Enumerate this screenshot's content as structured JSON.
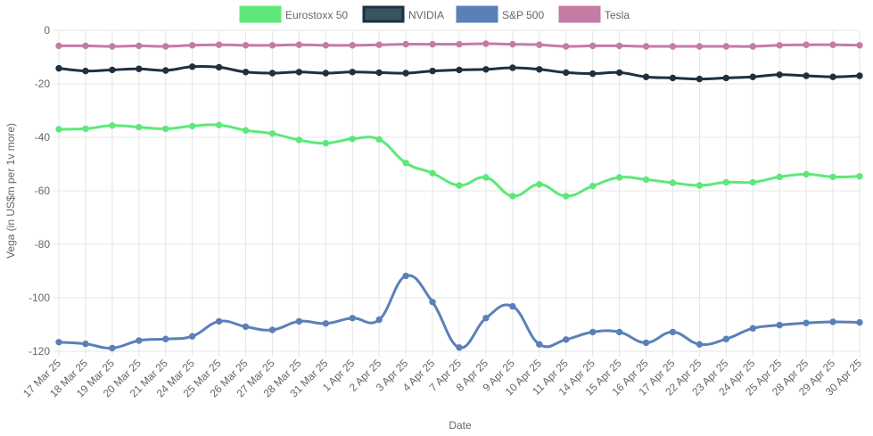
{
  "chart_data": {
    "type": "line",
    "title": "",
    "xlabel": "Date",
    "ylabel": "Vega (in US$m per 1v more)",
    "ylim": [
      -120,
      0
    ],
    "yticks": [
      0,
      -20,
      -40,
      -60,
      -80,
      -100,
      -120
    ],
    "grid": true,
    "legend_position": "top",
    "categories": [
      "17 Mar 25",
      "18 Mar 25",
      "19 Mar 25",
      "20 Mar 25",
      "21 Mar 25",
      "24 Mar 25",
      "25 Mar 25",
      "26 Mar 25",
      "27 Mar 25",
      "28 Mar 25",
      "31 Mar 25",
      "1 Apr 25",
      "2 Apr 25",
      "3 Apr 25",
      "4 Apr 25",
      "7 Apr 25",
      "8 Apr 25",
      "9 Apr 25",
      "10 Apr 25",
      "11 Apr 25",
      "14 Apr 25",
      "15 Apr 25",
      "16 Apr 25",
      "17 Apr 25",
      "22 Apr 25",
      "23 Apr 25",
      "24 Apr 25",
      "25 Apr 25",
      "28 Apr 25",
      "29 Apr 25",
      "30 Apr 25"
    ],
    "series": [
      {
        "name": "Eurostoxx 50",
        "color": "#5ee87a",
        "border_color": "#5ee87a",
        "values": [
          -37.0,
          -36.8,
          -35.6,
          -36.2,
          -36.8,
          -35.8,
          -35.4,
          -37.4,
          -38.6,
          -41.0,
          -42.2,
          -40.6,
          -40.8,
          -49.6,
          -53.4,
          -58.0,
          -55.0,
          -62.0,
          -57.6,
          -62.0,
          -58.2,
          -55.0,
          -55.8,
          -57.0,
          -58.0,
          -56.8,
          -56.8,
          -54.8,
          -53.8,
          -54.8,
          -54.6
        ]
      },
      {
        "name": "NVIDIA",
        "color": "#3a5360",
        "border_color": "#1f3040",
        "values": [
          -14.2,
          -15.2,
          -14.8,
          -14.4,
          -15.0,
          -13.6,
          -13.8,
          -15.6,
          -16.0,
          -15.6,
          -16.0,
          -15.6,
          -15.8,
          -16.0,
          -15.2,
          -14.8,
          -14.6,
          -14.0,
          -14.6,
          -15.8,
          -16.2,
          -15.8,
          -17.4,
          -17.8,
          -18.2,
          -17.8,
          -17.4,
          -16.6,
          -17.0,
          -17.4,
          -17.0
        ]
      },
      {
        "name": "S&P 500",
        "color": "#5b80b8",
        "border_color": "#5b80b8",
        "values": [
          -116.6,
          -117.2,
          -118.8,
          -116.0,
          -115.4,
          -114.4,
          -108.8,
          -110.8,
          -112.0,
          -108.8,
          -109.6,
          -107.6,
          -108.2,
          -91.8,
          -101.6,
          -118.6,
          -107.6,
          -103.2,
          -117.4,
          -115.6,
          -112.8,
          -112.8,
          -116.8,
          -112.8,
          -117.4,
          -115.4,
          -111.4,
          -110.2,
          -109.4,
          -109.0,
          -109.2
        ]
      },
      {
        "name": "Tesla",
        "color": "#c47ba4",
        "border_color": "#c47ba4",
        "values": [
          -5.8,
          -5.8,
          -6.0,
          -5.8,
          -6.0,
          -5.6,
          -5.4,
          -5.6,
          -5.6,
          -5.4,
          -5.6,
          -5.6,
          -5.4,
          -5.2,
          -5.2,
          -5.2,
          -5.0,
          -5.2,
          -5.4,
          -6.0,
          -5.8,
          -5.8,
          -6.0,
          -6.0,
          -6.0,
          -6.0,
          -6.0,
          -5.6,
          -5.4,
          -5.4,
          -5.6
        ]
      }
    ]
  }
}
